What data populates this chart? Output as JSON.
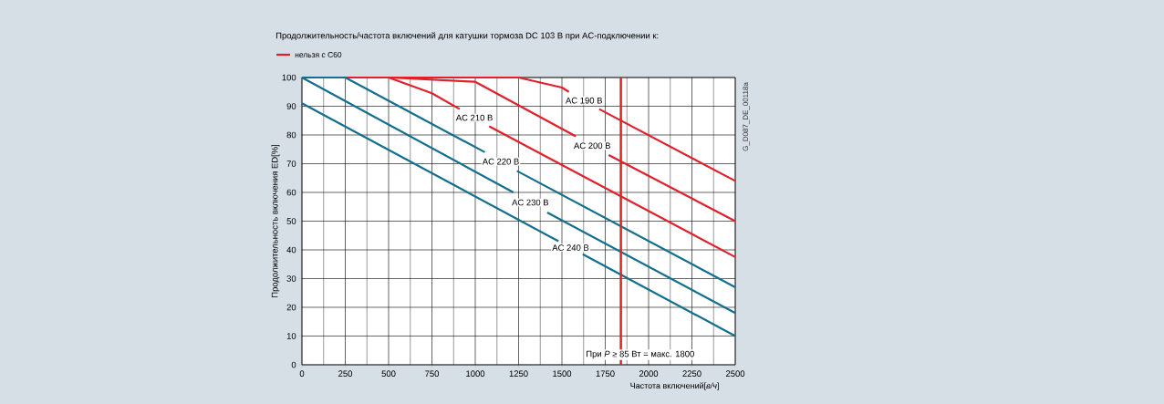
{
  "chart_data": {
    "type": "line",
    "title": "Продолжительность/частота включений для катушки тормоза DC 103 В при AC-подключении к:",
    "xlabel": "Частота включений[*в/ч*]",
    "ylabel": "Продолжительность включения ED[%]",
    "annotations": [
      "нельзя с С60",
      "G_D087_DE_00118a"
    ],
    "xlim": [
      0,
      2500
    ],
    "ylim": [
      0,
      100
    ],
    "xticks": [
      0,
      250,
      500,
      750,
      1000,
      1250,
      1500,
      1750,
      2000,
      2250,
      2500
    ],
    "yticks": [
      0,
      10,
      20,
      30,
      40,
      50,
      60,
      70,
      80,
      90,
      100
    ],
    "grid": true,
    "marker": "none",
    "line_style": "solid",
    "series": [
      {
        "name": "AC 190 В",
        "color": "#e0202a",
        "x": [
          250,
          1250,
          1500,
          1540,
          1630,
          1715,
          2500
        ],
        "values": [
          100,
          100,
          96.5,
          95,
          null,
          89,
          64
        ]
      },
      {
        "name": "AC 200 В",
        "color": "#e0202a",
        "x": [
          250,
          500,
          1000,
          1580,
          1675,
          1770,
          2500
        ],
        "values": [
          100,
          100,
          98.5,
          79.5,
          null,
          73,
          50
        ]
      },
      {
        "name": "AC 210 В",
        "color": "#e0202a",
        "x": [
          250,
          500,
          750,
          910,
          995,
          1080,
          2500
        ],
        "values": [
          100,
          100,
          94.5,
          89,
          null,
          83,
          37.5
        ]
      },
      {
        "name": "AC 220 В",
        "color": "#136f8f",
        "x": [
          0,
          250,
          1055,
          1150,
          1240,
          2500
        ],
        "values": [
          100,
          100,
          74,
          null,
          67.5,
          27
        ]
      },
      {
        "name": "AC 230 В",
        "color": "#136f8f",
        "x": [
          0,
          1220,
          1320,
          1415,
          2500
        ],
        "values": [
          100,
          60,
          null,
          53,
          18
        ]
      },
      {
        "name": "AC 240 В",
        "color": "#136f8f",
        "x": [
          0,
          1480,
          1550,
          1620,
          2500
        ],
        "values": [
          91,
          43,
          null,
          38.5,
          10
        ]
      }
    ],
    "ref_lines": [
      {
        "axis": "x",
        "value": 1840,
        "label": "При *P* ≥ 85 Вт = макс. 1800",
        "color": "#e0202a"
      }
    ]
  }
}
